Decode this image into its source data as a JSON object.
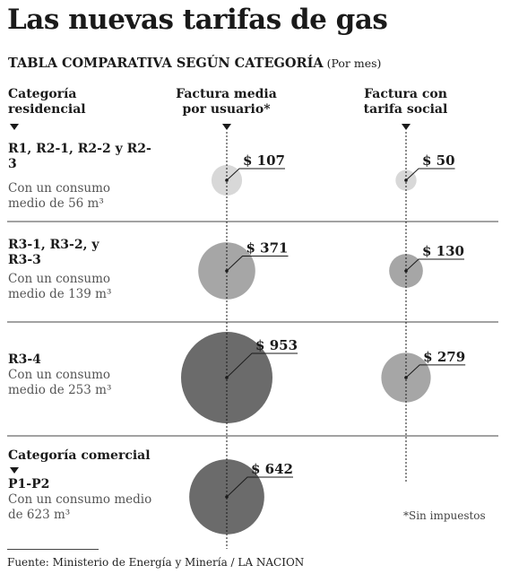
{
  "title": "Las nuevas tarifas de gas",
  "subtitle": "TABLA COMPARATIVA SEGÚN CATEGORÍA",
  "subtitle_unit": "(Por mes)",
  "headers": {
    "category": "Categoría residencial",
    "avg_bill": "Factura media por usuario*",
    "social_bill": "Factura con tarifa social"
  },
  "rows": [
    {
      "name": "R1, R2-1, R2-2 y R2-3",
      "consumption": "Con un consumo medio de 56 m³"
    },
    {
      "name": "R3-1, R3-2, y R3-3",
      "consumption": "Con un consumo medio de 139 m³"
    },
    {
      "name": "R3-4",
      "consumption": "Con un consumo medio de 253 m³"
    },
    {
      "section": "Categoría comercial",
      "name": "P1-P2",
      "consumption": "Con un consumo medio de 623 m³"
    }
  ],
  "footnote": "*Sin impuestos",
  "source": "Fuente: Ministerio de Energía y Minería /  LA NACION",
  "colors": {
    "light": "#d8d8d8",
    "mid": "#a6a6a6",
    "dark": "#6b6b6b",
    "text": "#1a1a1a",
    "rule": "#444444"
  },
  "chart_data": {
    "type": "bubble",
    "title": "Las nuevas tarifas de gas",
    "subtitle": "TABLA COMPARATIVA SEGÚN CATEGORÍA (Por mes)",
    "unit": "$",
    "categories": [
      "R1, R2-1, R2-2 y R2-3",
      "R3-1, R3-2, y R3-3",
      "R3-4",
      "P1-P2"
    ],
    "series": [
      {
        "name": "Factura media por usuario*",
        "values": [
          107,
          371,
          953,
          642
        ],
        "labels": [
          "$ 107",
          "$ 371",
          "$ 953",
          "$ 642"
        ]
      },
      {
        "name": "Factura con tarifa social",
        "values": [
          50,
          130,
          279,
          null
        ],
        "labels": [
          "$ 50",
          "$ 130",
          "$ 279",
          ""
        ]
      }
    ]
  }
}
